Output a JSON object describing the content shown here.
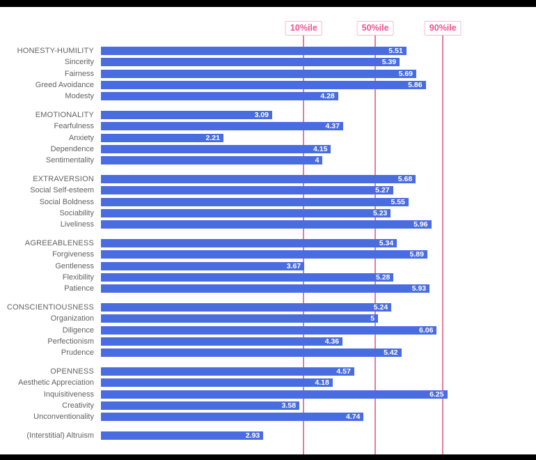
{
  "chart_data": {
    "type": "bar",
    "orientation": "horizontal",
    "title": "",
    "axis": {
      "min": 0,
      "max": 7.85
    },
    "colors": {
      "bar": "#4a6ce1",
      "bar_value_text": "#ffffff",
      "marker_line": "#e57d96",
      "marker_text": "#f0518f",
      "marker_box_border": "#f5bccd",
      "label_text": "#616161",
      "plot_background": "#ffffff",
      "page_background": "#000000"
    },
    "percentile_markers": [
      {
        "label": "10%ile",
        "value": 3.66
      },
      {
        "label": "50%ile",
        "value": 4.95
      },
      {
        "label": "90%ile",
        "value": 6.17
      }
    ],
    "groups": [
      {
        "items": [
          {
            "label": "HONESTY-HUMILITY",
            "value": 5.51,
            "display": "5.51",
            "is_factor": true
          },
          {
            "label": "Sincerity",
            "value": 5.39,
            "display": "5.39",
            "is_factor": false
          },
          {
            "label": "Fairness",
            "value": 5.69,
            "display": "5.69",
            "is_factor": false
          },
          {
            "label": "Greed Avoidance",
            "value": 5.86,
            "display": "5.86",
            "is_factor": false
          },
          {
            "label": "Modesty",
            "value": 4.28,
            "display": "4.28",
            "is_factor": false
          }
        ]
      },
      {
        "items": [
          {
            "label": "EMOTIONALITY",
            "value": 3.09,
            "display": "3.09",
            "is_factor": true
          },
          {
            "label": "Fearfulness",
            "value": 4.37,
            "display": "4.37",
            "is_factor": false
          },
          {
            "label": "Anxiety",
            "value": 2.21,
            "display": "2.21",
            "is_factor": false
          },
          {
            "label": "Dependence",
            "value": 4.15,
            "display": "4.15",
            "is_factor": false
          },
          {
            "label": "Sentimentality",
            "value": 4,
            "display": "4",
            "is_factor": false
          }
        ]
      },
      {
        "items": [
          {
            "label": "EXTRAVERSION",
            "value": 5.68,
            "display": "5.68",
            "is_factor": true
          },
          {
            "label": "Social Self-esteem",
            "value": 5.27,
            "display": "5.27",
            "is_factor": false
          },
          {
            "label": "Social Boldness",
            "value": 5.55,
            "display": "5.55",
            "is_factor": false
          },
          {
            "label": "Sociability",
            "value": 5.23,
            "display": "5.23",
            "is_factor": false
          },
          {
            "label": "Liveliness",
            "value": 5.96,
            "display": "5.96",
            "is_factor": false
          }
        ]
      },
      {
        "items": [
          {
            "label": "AGREEABLENESS",
            "value": 5.34,
            "display": "5.34",
            "is_factor": true
          },
          {
            "label": "Forgiveness",
            "value": 5.89,
            "display": "5.89",
            "is_factor": false
          },
          {
            "label": "Gentleness",
            "value": 3.67,
            "display": "3.67",
            "is_factor": false
          },
          {
            "label": "Flexibility",
            "value": 5.28,
            "display": "5.28",
            "is_factor": false
          },
          {
            "label": "Patience",
            "value": 5.93,
            "display": "5.93",
            "is_factor": false
          }
        ]
      },
      {
        "items": [
          {
            "label": "CONSCIENTIOUSNESS",
            "value": 5.24,
            "display": "5.24",
            "is_factor": true
          },
          {
            "label": "Organization",
            "value": 5,
            "display": "5",
            "is_factor": false
          },
          {
            "label": "Diligence",
            "value": 6.06,
            "display": "6.06",
            "is_factor": false
          },
          {
            "label": "Perfectionism",
            "value": 4.36,
            "display": "4.36",
            "is_factor": false
          },
          {
            "label": "Prudence",
            "value": 5.42,
            "display": "5.42",
            "is_factor": false
          }
        ]
      },
      {
        "items": [
          {
            "label": "OPENNESS",
            "value": 4.57,
            "display": "4.57",
            "is_factor": true
          },
          {
            "label": "Aesthetic Appreciation",
            "value": 4.18,
            "display": "4.18",
            "is_factor": false
          },
          {
            "label": "Inquisitiveness",
            "value": 6.25,
            "display": "6.25",
            "is_factor": false
          },
          {
            "label": "Creativity",
            "value": 3.58,
            "display": "3.58",
            "is_factor": false
          },
          {
            "label": "Unconventionality",
            "value": 4.74,
            "display": "4.74",
            "is_factor": false
          }
        ]
      },
      {
        "items": [
          {
            "label": "(Interstitial) Altruism",
            "value": 2.93,
            "display": "2.93",
            "is_factor": false
          }
        ]
      }
    ]
  }
}
